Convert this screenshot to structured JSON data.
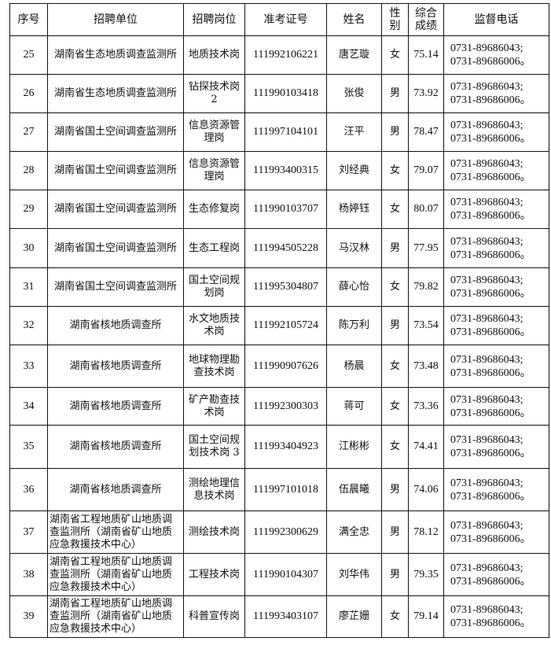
{
  "headers": [
    "序号",
    "招聘单位",
    "招聘岗位",
    "准考证号",
    "姓名",
    "性别",
    "综合成绩",
    "监督电话"
  ],
  "phone_lines": [
    "0731-89686043;",
    "0731-89686006。"
  ],
  "rows": [
    {
      "no": "25",
      "unit": "湖南省生态地质调查监测所",
      "post": "地质技术岗",
      "id": "111992106221",
      "name": "唐艺璇",
      "gender": "女",
      "score": "75.14"
    },
    {
      "no": "26",
      "unit": "湖南省生态地质调查监测所",
      "post": "钻探技术岗 2",
      "id": "111990103418",
      "name": "张俊",
      "gender": "男",
      "score": "73.92"
    },
    {
      "no": "27",
      "unit": "湖南省国土空间调查监测所",
      "post": "信息资源管理岗",
      "id": "111997104101",
      "name": "汪平",
      "gender": "男",
      "score": "78.47"
    },
    {
      "no": "28",
      "unit": "湖南省国土空间调查监测所",
      "post": "信息资源管理岗",
      "id": "111993400315",
      "name": "刘经典",
      "gender": "女",
      "score": "79.07"
    },
    {
      "no": "29",
      "unit": "湖南省国土空间调查监测所",
      "post": "生态修复岗",
      "id": "111990103707",
      "name": "杨婷钰",
      "gender": "女",
      "score": "80.07"
    },
    {
      "no": "30",
      "unit": "湖南省国土空间调查监测所",
      "post": "生态工程岗",
      "id": "111994505228",
      "name": "马汉林",
      "gender": "男",
      "score": "77.95"
    },
    {
      "no": "31",
      "unit": "湖南省国土空间调查监测所",
      "post": "国土空间规划岗",
      "id": "111995304807",
      "name": "薛心怡",
      "gender": "女",
      "score": "79.82"
    },
    {
      "no": "32",
      "unit": "湖南省核地质调查所",
      "post": "水文地质技术岗",
      "id": "111992105724",
      "name": "陈万利",
      "gender": "男",
      "score": "73.54"
    },
    {
      "no": "33",
      "unit": "湖南省核地质调查所",
      "post": "地球物理勘查技术岗",
      "id": "111990907626",
      "name": "杨晨",
      "gender": "女",
      "score": "73.48"
    },
    {
      "no": "34",
      "unit": "湖南省核地质调查所",
      "post": "矿产勘查技术岗",
      "id": "111992300303",
      "name": "蒋可",
      "gender": "女",
      "score": "73.36"
    },
    {
      "no": "35",
      "unit": "湖南省核地质调查所",
      "post": "国土空间规划技术岗 3",
      "id": "111993404923",
      "name": "江彬彬",
      "gender": "女",
      "score": "74.41"
    },
    {
      "no": "36",
      "unit": "湖南省核地质调查所",
      "post": "测绘地理信息技术岗",
      "id": "111997101018",
      "name": "伍晨曦",
      "gender": "男",
      "score": "74.06"
    },
    {
      "no": "37",
      "unit": "湖南省工程地质矿山地质调查监测所（湖南省矿山地质应急救援技术中心）",
      "post": "测绘技术岗",
      "id": "111992300629",
      "name": "满全忠",
      "gender": "男",
      "score": "78.12"
    },
    {
      "no": "38",
      "unit": "湖南省工程地质矿山地质调查监测所（湖南省矿山地质应急救援技术中心）",
      "post": "工程技术岗",
      "id": "111990104307",
      "name": "刘华伟",
      "gender": "男",
      "score": "79.35"
    },
    {
      "no": "39",
      "unit": "湖南省工程地质矿山地质调查监测所（湖南省矿山地质应急救援技术中心）",
      "post": "科普宣传岗",
      "id": "111993403107",
      "name": "廖芷姗",
      "gender": "女",
      "score": "79.14"
    }
  ]
}
